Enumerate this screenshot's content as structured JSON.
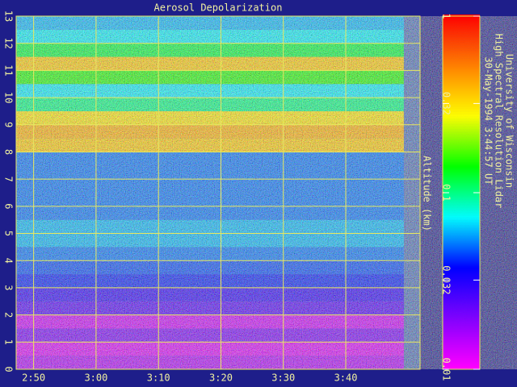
{
  "chart_data": {
    "type": "heatmap",
    "title": "Aerosol Depolarization",
    "ylabel": "Altitude (km)",
    "notes": [
      "University of Wisconsin",
      "High Spectral Resolution Lidar",
      "30-May-1994  3:44:57 UT"
    ],
    "xlim": [
      167.2,
      231.9
    ],
    "data_xlim": [
      167.2,
      229.3
    ],
    "xticks": [
      {
        "value": 170,
        "label": "2:50"
      },
      {
        "value": 180,
        "label": "3:00"
      },
      {
        "value": 190,
        "label": "3:10"
      },
      {
        "value": 200,
        "label": "3:20"
      },
      {
        "value": 210,
        "label": "3:30"
      },
      {
        "value": 220,
        "label": "3:40"
      }
    ],
    "ylim": [
      0,
      13
    ],
    "yticks": [
      0,
      1,
      2,
      3,
      4,
      5,
      6,
      7,
      8,
      9,
      10,
      11,
      12,
      13
    ],
    "y_bins": [
      0,
      0.5,
      1,
      1.5,
      2,
      2.5,
      3,
      3.5,
      4,
      4.5,
      5,
      5.5,
      6,
      6.5,
      7,
      7.5,
      8,
      8.5,
      9,
      9.5,
      10,
      10.5,
      11,
      11.5,
      12,
      12.5,
      13
    ],
    "values": [
      0.015,
      0.012,
      0.02,
      0.013,
      0.025,
      0.03,
      0.04,
      0.045,
      0.05,
      0.06,
      0.06,
      0.05,
      0.05,
      0.05,
      0.05,
      0.05,
      0.35,
      0.4,
      0.3,
      0.1,
      0.07,
      0.15,
      0.35,
      0.12,
      0.07,
      0.06
    ],
    "zlim": [
      0.01,
      1
    ],
    "zticks": [
      0.01,
      0.032,
      0.1,
      0.32,
      1
    ],
    "zscale": "log",
    "colormap": [
      "#ff00ff",
      "#8000ff",
      "#0000ff",
      "#00ffff",
      "#00ff00",
      "#ffff00",
      "#ff8000",
      "#ff0000"
    ],
    "grid": true
  }
}
